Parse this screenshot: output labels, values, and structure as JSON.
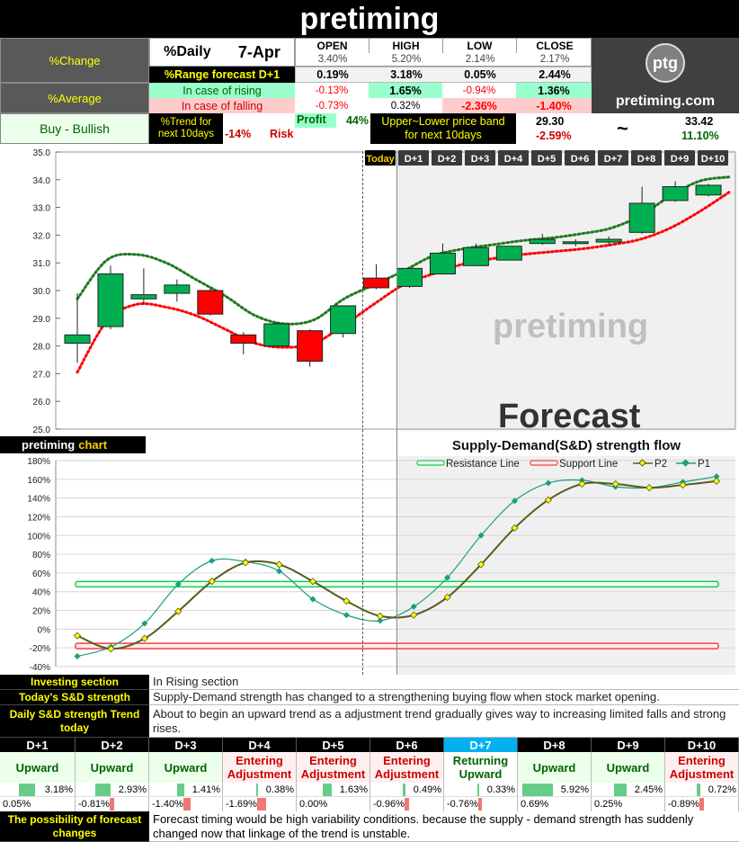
{
  "title": "pretiming",
  "summary": {
    "pct_change_label": "%Change",
    "pct_average_label": "%Average",
    "signal": "Buy - Bullish",
    "period": "%Daily",
    "date": "7-Apr",
    "headers": [
      "OPEN",
      "HIGH",
      "LOW",
      "CLOSE"
    ],
    "change_values": [
      "3.40%",
      "5.20%",
      "2.14%",
      "2.17%"
    ],
    "range_label": "%Range forecast D+1",
    "range_values": [
      "0.19%",
      "3.18%",
      "0.05%",
      "2.44%"
    ],
    "rising_label": "In case of rising",
    "rising_values": [
      "-0.13%",
      "1.65%",
      "-0.94%",
      "1.36%"
    ],
    "falling_label": "In case of falling",
    "falling_values": [
      "-0.73%",
      "0.32%",
      "-2.36%",
      "-1.40%"
    ],
    "trend_label": "%Trend for next 10days",
    "profit_label": "Profit",
    "profit_value": "44%",
    "risk_value": "-14%",
    "risk_label": "Risk",
    "band_label": "Upper~Lower price band for next 10days",
    "band_low_price": "29.30",
    "band_low_pct": "-2.59%",
    "band_tilde": "~",
    "band_high_price": "33.42",
    "band_high_pct": "11.10%",
    "logo_text": "ptg",
    "site": "pretiming.com"
  },
  "chart_data": [
    {
      "type": "candlestick",
      "yticks": [
        "35.0",
        "34.0",
        "33.0",
        "32.0",
        "31.0",
        "30.0",
        "29.0",
        "28.0",
        "27.0",
        "26.0",
        "25.0"
      ],
      "ylim": [
        25.0,
        35.0
      ],
      "day_tags": [
        "Today",
        "D+1",
        "D+2",
        "D+3",
        "D+4",
        "D+5",
        "D+6",
        "D+7",
        "D+8",
        "D+9",
        "D+10"
      ],
      "watermark": "pretiming",
      "forecast_label": "Forecast",
      "candles": [
        {
          "o": 28.1,
          "h": 29.9,
          "l": 27.4,
          "c": 28.4
        },
        {
          "o": 28.7,
          "h": 30.9,
          "l": 28.6,
          "c": 30.6
        },
        {
          "o": 29.7,
          "h": 30.8,
          "l": 29.5,
          "c": 29.85
        },
        {
          "o": 29.9,
          "h": 30.4,
          "l": 29.6,
          "c": 30.2
        },
        {
          "o": 30.0,
          "h": 30.1,
          "l": 29.1,
          "c": 29.15
        },
        {
          "o": 28.4,
          "h": 28.5,
          "l": 27.7,
          "c": 28.1
        },
        {
          "o": 28.0,
          "h": 28.85,
          "l": 27.95,
          "c": 28.8
        },
        {
          "o": 28.55,
          "h": 28.6,
          "l": 27.25,
          "c": 27.45
        },
        {
          "o": 28.45,
          "h": 29.45,
          "l": 28.3,
          "c": 29.45
        },
        {
          "o": 30.45,
          "h": 30.95,
          "l": 30.05,
          "c": 30.1
        },
        {
          "o": 30.15,
          "h": 30.8,
          "l": 30.1,
          "c": 30.8
        },
        {
          "o": 30.6,
          "h": 31.7,
          "l": 30.6,
          "c": 31.35
        },
        {
          "o": 30.9,
          "h": 31.7,
          "l": 30.9,
          "c": 31.55
        },
        {
          "o": 31.1,
          "h": 31.6,
          "l": 31.1,
          "c": 31.6
        },
        {
          "o": 31.7,
          "h": 32.05,
          "l": 31.65,
          "c": 31.85
        },
        {
          "o": 31.72,
          "h": 31.85,
          "l": 31.6,
          "c": 31.76
        },
        {
          "o": 31.75,
          "h": 31.95,
          "l": 31.6,
          "c": 31.85
        },
        {
          "o": 32.1,
          "h": 33.75,
          "l": 32.05,
          "c": 33.15
        },
        {
          "o": 33.25,
          "h": 33.95,
          "l": 33.2,
          "c": 33.75
        },
        {
          "o": 33.45,
          "h": 33.85,
          "l": 33.4,
          "c": 33.8
        }
      ],
      "upper_line": [
        29.7,
        31.1,
        31.3,
        31.0,
        30.4,
        29.8,
        29.1,
        28.8,
        28.95,
        29.7,
        30.2,
        30.7,
        31.25,
        31.5,
        31.65,
        31.8,
        31.9,
        32.05,
        32.25,
        32.7,
        33.4,
        33.95,
        34.1
      ],
      "lower_line": [
        27.05,
        28.9,
        29.5,
        29.4,
        29.1,
        28.6,
        28.1,
        27.95,
        28.1,
        28.75,
        29.5,
        30.2,
        30.6,
        30.95,
        31.15,
        31.3,
        31.4,
        31.5,
        31.65,
        31.85,
        32.25,
        32.85,
        33.55
      ]
    },
    {
      "type": "line",
      "title": "Supply-Demand(S&D) strength flow",
      "chart_label": "pretiming",
      "chart_label_accent": "chart",
      "yticks": [
        "180%",
        "160%",
        "140%",
        "120%",
        "100%",
        "80%",
        "60%",
        "40%",
        "20%",
        "0%",
        "-20%",
        "-40%"
      ],
      "ylim": [
        -40,
        180
      ],
      "legend": [
        "Resistance Line",
        "Support Line",
        "P2",
        "P1"
      ],
      "resistance": 48,
      "support": -18,
      "series": [
        {
          "name": "P2",
          "values": [
            -7,
            -21,
            -10,
            19,
            51,
            71,
            69,
            51,
            30,
            14,
            15,
            34,
            69,
            108,
            138,
            155,
            155,
            151,
            154,
            158
          ]
        },
        {
          "name": "P1",
          "values": [
            -29,
            -19,
            6,
            48,
            73,
            72,
            62,
            32,
            15,
            9,
            24,
            55,
            100,
            137,
            156,
            159,
            152,
            151,
            157,
            163
          ]
        }
      ]
    }
  ],
  "sections": {
    "investing_label": "Investing section",
    "investing_text": "In Rising section",
    "today_sd_label": "Today's S&D strength",
    "today_sd_text": "Supply-Demand strength has changed to a strengthening buying flow when stock market opening.",
    "daily_trend_label": "Daily S&D strength Trend today",
    "daily_trend_text": "About to begin an upward trend as a adjustment trend gradually gives way to increasing limited falls and strong rises.",
    "possibility_label": "The possibility of forecast changes",
    "possibility_text": "Forecast timing would be high variability conditions. because the supply - demand strength has suddenly changed now that linkage of the trend is unstable."
  },
  "forecast_days": [
    {
      "day": "D+1",
      "trend": "Upward",
      "up": "3.18%",
      "up_level": 0.54,
      "down": "0.05%",
      "down_level": 0.0
    },
    {
      "day": "D+2",
      "trend": "Upward",
      "up": "2.93%",
      "up_level": 0.5,
      "down": "-0.81%",
      "down_level": 0.14
    },
    {
      "day": "D+3",
      "trend": "Upward",
      "up": "1.41%",
      "up_level": 0.24,
      "down": "-1.40%",
      "down_level": 0.24
    },
    {
      "day": "D+4",
      "trend": "Entering Adjustment",
      "up": "0.38%",
      "up_level": 0.07,
      "down": "-1.69%",
      "down_level": 0.29
    },
    {
      "day": "D+5",
      "trend": "Entering Adjustment",
      "up": "1.63%",
      "up_level": 0.28,
      "down": "0.00%",
      "down_level": 0.0
    },
    {
      "day": "D+6",
      "trend": "Entering Adjustment",
      "up": "0.49%",
      "up_level": 0.08,
      "down": "-0.96%",
      "down_level": 0.16
    },
    {
      "day": "D+7",
      "trend": "Returning Upward",
      "up": "0.33%",
      "up_level": 0.06,
      "down": "-0.76%",
      "down_level": 0.13
    },
    {
      "day": "D+8",
      "trend": "Upward",
      "up": "5.92%",
      "up_level": 1.0,
      "down": "0.69%",
      "down_level": 0.0
    },
    {
      "day": "D+9",
      "trend": "Upward",
      "up": "2.45%",
      "up_level": 0.41,
      "down": "0.25%",
      "down_level": 0.0
    },
    {
      "day": "D+10",
      "trend": "Entering Adjustment",
      "up": "0.72%",
      "up_level": 0.12,
      "down": "-0.89%",
      "down_level": 0.15
    }
  ],
  "colors": {
    "up_candle": "#00b050",
    "down_candle": "#ff0000",
    "upper_line": "#1f7a1f",
    "lower_line": "#ff0000",
    "p1": "#1aa07a",
    "p2": "#5a5a1e",
    "p2_marker": "#ffff00",
    "resistance": "#22c55e",
    "support": "#ef4444",
    "today_header": "#00b0f0"
  }
}
